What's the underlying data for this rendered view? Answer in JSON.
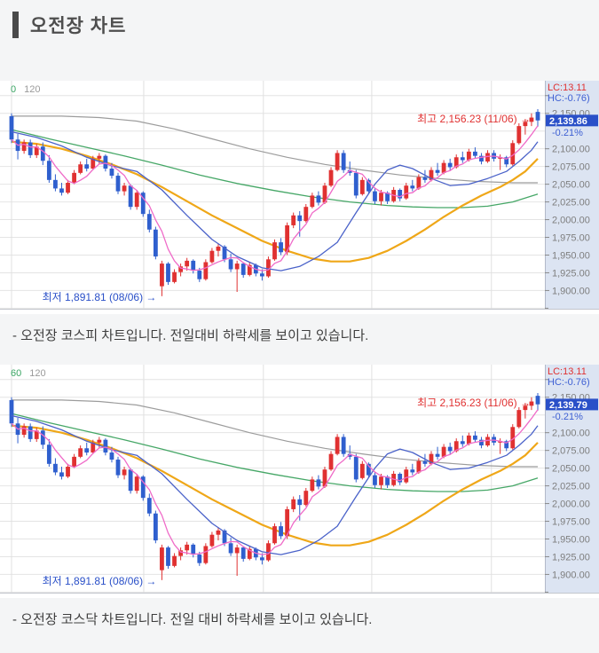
{
  "header": {
    "title": "오전장 차트"
  },
  "captions": {
    "kospi": "- 오전장 코스피 차트입니다. 전일대비 하락세를 보이고 있습니다.",
    "kosdaq": "- 오전장 코스닥 차트입니다. 전일 대비 하락세를 보이고 있습니다."
  },
  "chart_data": {
    "type": "candlestick",
    "x_span_days": 85,
    "price_axis": {
      "range_top": 2196,
      "range_bottom": 1873,
      "grid_step": 25,
      "ticks": [
        {
          "label": "2,150.00",
          "value": 2150
        },
        {
          "label": "2,100.00",
          "value": 2100
        },
        {
          "label": "2,075.00",
          "value": 2075
        },
        {
          "label": "2,050.00",
          "value": 2050
        },
        {
          "label": "2,025.00",
          "value": 2025
        },
        {
          "label": "2,000.00",
          "value": 2000
        },
        {
          "label": "1,975.00",
          "value": 1975
        },
        {
          "label": "1,950.00",
          "value": 1950
        },
        {
          "label": "1,925.00",
          "value": 1925
        },
        {
          "label": "1,900.00",
          "value": 1900
        }
      ],
      "minor_tick_values": [
        2175,
        1875
      ]
    },
    "month_break_days": [
      0,
      21.1,
      40.2,
      57.5,
      76.6
    ],
    "colors": {
      "up": "#e03131",
      "down": "#2f5fce",
      "ma5": "#ef6bc8",
      "ma20": "#4a62c9",
      "ma60": "#efa718",
      "ma120": "#46a767",
      "ma240": "#9c9c9c",
      "grid": "#e4e4e4",
      "axis_bg": "#dce4f2",
      "axis_border": "#b2b9c9",
      "axis_label": "#7e7e7e",
      "price_box_bg": "#2a50c8",
      "pct_text": "#3d5fd3",
      "high_text": "#e03131",
      "low_text": "#2a50c8"
    },
    "series": {
      "candles": [
        [
          2146,
          2150,
          2108,
          2113
        ],
        [
          2113,
          2121,
          2085,
          2097
        ],
        [
          2097,
          2113,
          2093,
          2109
        ],
        [
          2109,
          2113,
          2087,
          2091
        ],
        [
          2091,
          2107,
          2087,
          2103
        ],
        [
          2103,
          2109,
          2077,
          2083
        ],
        [
          2083,
          2091,
          2052,
          2056
        ],
        [
          2056,
          2064,
          2040,
          2044
        ],
        [
          2044,
          2052,
          2034,
          2038
        ],
        [
          2038,
          2056,
          2036,
          2052
        ],
        [
          2052,
          2070,
          2050,
          2066
        ],
        [
          2066,
          2082,
          2064,
          2078
        ],
        [
          2078,
          2086,
          2068,
          2072
        ],
        [
          2072,
          2090,
          2070,
          2086
        ],
        [
          2086,
          2094,
          2078,
          2090
        ],
        [
          2090,
          2092,
          2068,
          2072
        ],
        [
          2072,
          2080,
          2058,
          2062
        ],
        [
          2062,
          2066,
          2036,
          2040
        ],
        [
          2040,
          2052,
          2034,
          2048
        ],
        [
          2048,
          2050,
          2014,
          2018
        ],
        [
          2018,
          2042,
          2014,
          2038
        ],
        [
          2038,
          2040,
          2004,
          2008
        ],
        [
          2008,
          2014,
          1982,
          1986
        ],
        [
          1986,
          1990,
          1944,
          1948
        ],
        [
          1906,
          1942,
          1892,
          1938
        ],
        [
          1938,
          1940,
          1908,
          1912
        ],
        [
          1912,
          1930,
          1910,
          1926
        ],
        [
          1926,
          1938,
          1920,
          1934
        ],
        [
          1934,
          1946,
          1928,
          1942
        ],
        [
          1942,
          1944,
          1924,
          1928
        ],
        [
          1928,
          1932,
          1912,
          1916
        ],
        [
          1916,
          1944,
          1914,
          1940
        ],
        [
          1940,
          1960,
          1938,
          1956
        ],
        [
          1956,
          1966,
          1948,
          1962
        ],
        [
          1962,
          1964,
          1940,
          1944
        ],
        [
          1944,
          1952,
          1926,
          1930
        ],
        [
          1930,
          1942,
          1898,
          1938
        ],
        [
          1938,
          1940,
          1918,
          1922
        ],
        [
          1922,
          1940,
          1920,
          1936
        ],
        [
          1936,
          1938,
          1920,
          1924
        ],
        [
          1924,
          1930,
          1914,
          1920
        ],
        [
          1920,
          1948,
          1918,
          1944
        ],
        [
          1944,
          1972,
          1942,
          1968
        ],
        [
          1968,
          1974,
          1950,
          1954
        ],
        [
          1954,
          1996,
          1950,
          1992
        ],
        [
          1992,
          2010,
          1988,
          2006
        ],
        [
          2006,
          2012,
          1976,
          1998
        ],
        [
          1998,
          2022,
          1996,
          2018
        ],
        [
          2018,
          2038,
          2016,
          2034
        ],
        [
          2034,
          2040,
          2020,
          2024
        ],
        [
          2024,
          2052,
          2022,
          2048
        ],
        [
          2048,
          2074,
          2046,
          2070
        ],
        [
          2070,
          2098,
          2068,
          2094
        ],
        [
          2094,
          2098,
          2066,
          2070
        ],
        [
          2070,
          2082,
          2062,
          2066
        ],
        [
          2066,
          2070,
          2030,
          2034
        ],
        [
          2036,
          2060,
          2034,
          2056
        ],
        [
          2056,
          2058,
          2036,
          2040
        ],
        [
          2040,
          2044,
          2022,
          2026
        ],
        [
          2026,
          2042,
          2020,
          2038
        ],
        [
          2038,
          2040,
          2022,
          2026
        ],
        [
          2026,
          2046,
          2024,
          2042
        ],
        [
          2042,
          2044,
          2026,
          2030
        ],
        [
          2030,
          2052,
          2028,
          2048
        ],
        [
          2048,
          2056,
          2040,
          2044
        ],
        [
          2044,
          2064,
          2042,
          2060
        ],
        [
          2060,
          2070,
          2052,
          2056
        ],
        [
          2056,
          2074,
          2054,
          2070
        ],
        [
          2070,
          2080,
          2062,
          2066
        ],
        [
          2066,
          2084,
          2064,
          2080
        ],
        [
          2080,
          2086,
          2070,
          2074
        ],
        [
          2074,
          2092,
          2072,
          2088
        ],
        [
          2088,
          2096,
          2080,
          2084
        ],
        [
          2084,
          2100,
          2082,
          2096
        ],
        [
          2096,
          2102,
          2086,
          2090
        ],
        [
          2090,
          2094,
          2078,
          2082
        ],
        [
          2082,
          2098,
          2080,
          2094
        ],
        [
          2094,
          2098,
          2082,
          2086
        ],
        [
          2086,
          2092,
          2070,
          2088
        ],
        [
          2088,
          2090,
          2074,
          2078
        ],
        [
          2078,
          2112,
          2076,
          2108
        ],
        [
          2108,
          2136,
          2106,
          2132
        ],
        [
          2132,
          2142,
          2120,
          2138
        ],
        [
          2138,
          2150,
          2132,
          2144
        ],
        [
          2152,
          2156,
          2131,
          2140
        ]
      ],
      "ma20": [
        [
          0,
          2124
        ],
        [
          4,
          2116
        ],
        [
          8,
          2104
        ],
        [
          12,
          2088
        ],
        [
          16,
          2076
        ],
        [
          20,
          2068
        ],
        [
          24,
          2042
        ],
        [
          28,
          2006
        ],
        [
          32,
          1972
        ],
        [
          36,
          1948
        ],
        [
          40,
          1932
        ],
        [
          43,
          1928
        ],
        [
          46,
          1934
        ],
        [
          49,
          1948
        ],
        [
          52,
          1968
        ],
        [
          55,
          2010
        ],
        [
          58,
          2050
        ],
        [
          60,
          2070
        ],
        [
          62,
          2077
        ],
        [
          64,
          2072
        ],
        [
          67,
          2058
        ],
        [
          70,
          2048
        ],
        [
          73,
          2050
        ],
        [
          76,
          2058
        ],
        [
          79,
          2068
        ],
        [
          81,
          2082
        ],
        [
          83,
          2098
        ],
        [
          84,
          2110
        ]
      ],
      "ma60": [
        [
          0,
          2110
        ],
        [
          4,
          2107
        ],
        [
          8,
          2100
        ],
        [
          12,
          2090
        ],
        [
          16,
          2078
        ],
        [
          20,
          2064
        ],
        [
          24,
          2046
        ],
        [
          28,
          2026
        ],
        [
          32,
          2006
        ],
        [
          36,
          1988
        ],
        [
          40,
          1970
        ],
        [
          44,
          1956
        ],
        [
          48,
          1945
        ],
        [
          51,
          1941
        ],
        [
          54,
          1941
        ],
        [
          57,
          1946
        ],
        [
          60,
          1956
        ],
        [
          63,
          1970
        ],
        [
          66,
          1986
        ],
        [
          69,
          2004
        ],
        [
          72,
          2020
        ],
        [
          75,
          2034
        ],
        [
          78,
          2046
        ],
        [
          80,
          2056
        ],
        [
          82,
          2068
        ],
        [
          84,
          2086
        ]
      ],
      "ma120": [
        [
          0,
          2127
        ],
        [
          6,
          2114
        ],
        [
          12,
          2102
        ],
        [
          18,
          2090
        ],
        [
          24,
          2077
        ],
        [
          30,
          2063
        ],
        [
          36,
          2051
        ],
        [
          42,
          2041
        ],
        [
          48,
          2032
        ],
        [
          54,
          2025
        ],
        [
          60,
          2020
        ],
        [
          64,
          2018
        ],
        [
          68,
          2017
        ],
        [
          72,
          2017
        ],
        [
          76,
          2019
        ],
        [
          80,
          2025
        ],
        [
          84,
          2036
        ]
      ],
      "ma240": [
        [
          0,
          2146
        ],
        [
          8,
          2146
        ],
        [
          14,
          2144
        ],
        [
          20,
          2139
        ],
        [
          26,
          2128
        ],
        [
          32,
          2114
        ],
        [
          38,
          2100
        ],
        [
          44,
          2088
        ],
        [
          50,
          2078
        ],
        [
          56,
          2070
        ],
        [
          62,
          2063
        ],
        [
          68,
          2058
        ],
        [
          74,
          2054
        ],
        [
          80,
          2052
        ],
        [
          84,
          2052
        ]
      ]
    },
    "charts": [
      {
        "name": "kospi",
        "ma_legend": [
          {
            "text": "0",
            "color": "#3aa563"
          },
          {
            "text": "120",
            "color": "#9a9a9a"
          }
        ],
        "lc_label": "LC:13.11",
        "hc_label": "HC:-0.76)",
        "high_annotation": "최고 2,156.23 (11/06) →",
        "high_value": 2156.23,
        "high_date": "11/06",
        "low_annotation": "최저 1,891.81 (08/06) →",
        "low_value": 1891.81,
        "low_date": "08/06",
        "last_price": 2139.86,
        "last_price_label": "2,139.86",
        "change_pct_label": "-0.21%"
      },
      {
        "name": "kosdaq",
        "ma_legend": [
          {
            "text": "60",
            "color": "#3aa563"
          },
          {
            "text": "120",
            "color": "#9a9a9a"
          }
        ],
        "lc_label": "LC:13.11",
        "hc_label": "HC:-0.76)",
        "high_annotation": "최고 2,156.23 (11/06) →",
        "high_value": 2156.23,
        "high_date": "11/06",
        "low_annotation": "최저 1,891.81 (08/06) →",
        "low_value": 1891.81,
        "low_date": "08/06",
        "last_price": 2139.79,
        "last_price_label": "2,139.79",
        "change_pct_label": "-0.21%"
      }
    ]
  }
}
